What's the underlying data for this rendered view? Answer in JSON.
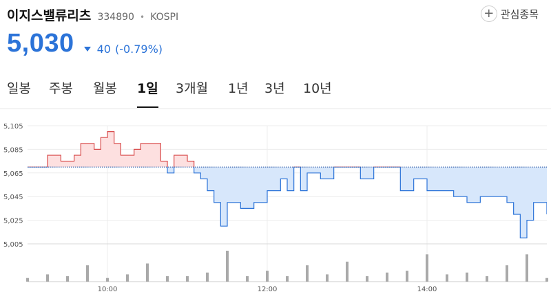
{
  "header": {
    "name": "이지스밸류리츠",
    "code": "334890",
    "separator": "•",
    "market": "KOSPI",
    "watch_label": "관심종목",
    "watch_icon": "plus-icon"
  },
  "quote": {
    "price": "5,030",
    "direction_icon": "down-triangle-icon",
    "change": "40",
    "change_pct": "(-0.79%)",
    "color_down": "#2b73d8",
    "color_up": "#d84a4a"
  },
  "tabs": [
    {
      "label": "일봉",
      "active": false
    },
    {
      "label": "주봉",
      "active": false
    },
    {
      "label": "월봉",
      "active": false
    },
    {
      "label": "1일",
      "active": true
    },
    {
      "label": "3개월",
      "active": false
    },
    {
      "label": "1년",
      "active": false
    },
    {
      "label": "3년",
      "active": false
    },
    {
      "label": "10년",
      "active": false
    }
  ],
  "chart_data": {
    "type": "line",
    "title": "",
    "xlabel": "",
    "ylabel": "",
    "reference_price": 5070,
    "ylim": [
      5005,
      5105
    ],
    "y_ticks": [
      5105,
      5085,
      5065,
      5045,
      5025,
      5005
    ],
    "y_tick_labels": [
      "5,105",
      "5,085",
      "5,065",
      "5,045",
      "5,025",
      "5,005"
    ],
    "x_ticks": [
      "10:00",
      "12:00",
      "14:00"
    ],
    "x_range": [
      "09:00",
      "15:30"
    ],
    "grid": true,
    "price": {
      "x": [
        "09:00",
        "09:10",
        "09:15",
        "09:20",
        "09:25",
        "09:35",
        "09:40",
        "09:45",
        "09:50",
        "09:55",
        "10:00",
        "10:05",
        "10:10",
        "10:20",
        "10:25",
        "10:35",
        "10:40",
        "10:45",
        "10:50",
        "10:55",
        "11:00",
        "11:05",
        "11:10",
        "11:15",
        "11:20",
        "11:25",
        "11:30",
        "11:40",
        "11:50",
        "12:00",
        "12:10",
        "12:15",
        "12:20",
        "12:25",
        "12:30",
        "12:40",
        "12:50",
        "13:00",
        "13:10",
        "13:20",
        "13:30",
        "13:40",
        "13:50",
        "14:00",
        "14:10",
        "14:20",
        "14:30",
        "14:40",
        "14:50",
        "15:00",
        "15:05",
        "15:10",
        "15:15",
        "15:20",
        "15:30"
      ],
      "y": [
        5070,
        5070,
        5080,
        5080,
        5075,
        5080,
        5090,
        5090,
        5085,
        5095,
        5100,
        5090,
        5080,
        5085,
        5090,
        5090,
        5075,
        5065,
        5080,
        5080,
        5075,
        5065,
        5060,
        5050,
        5040,
        5020,
        5040,
        5035,
        5040,
        5050,
        5060,
        5050,
        5070,
        5050,
        5065,
        5060,
        5070,
        5070,
        5060,
        5070,
        5070,
        5050,
        5060,
        5050,
        5050,
        5045,
        5040,
        5045,
        5045,
        5040,
        5030,
        5010,
        5025,
        5040,
        5030
      ]
    },
    "volume": {
      "x": [
        "09:00",
        "09:15",
        "09:30",
        "09:45",
        "10:00",
        "10:15",
        "10:30",
        "10:45",
        "11:00",
        "11:15",
        "11:30",
        "11:45",
        "12:00",
        "12:15",
        "12:30",
        "12:45",
        "13:00",
        "13:15",
        "13:30",
        "13:45",
        "14:00",
        "14:15",
        "14:30",
        "14:45",
        "15:00",
        "15:15",
        "15:30"
      ],
      "values": [
        2,
        4,
        3,
        9,
        2,
        4,
        10,
        3,
        3,
        5,
        17,
        3,
        6,
        3,
        9,
        4,
        11,
        3,
        5,
        6,
        15,
        4,
        5,
        3,
        9,
        15,
        2
      ],
      "color": "#a9a9a9"
    },
    "up_fill": "#fde0e0",
    "up_line": "#d84a4a",
    "down_fill": "#d7e7fb",
    "down_line": "#2b73d8"
  }
}
